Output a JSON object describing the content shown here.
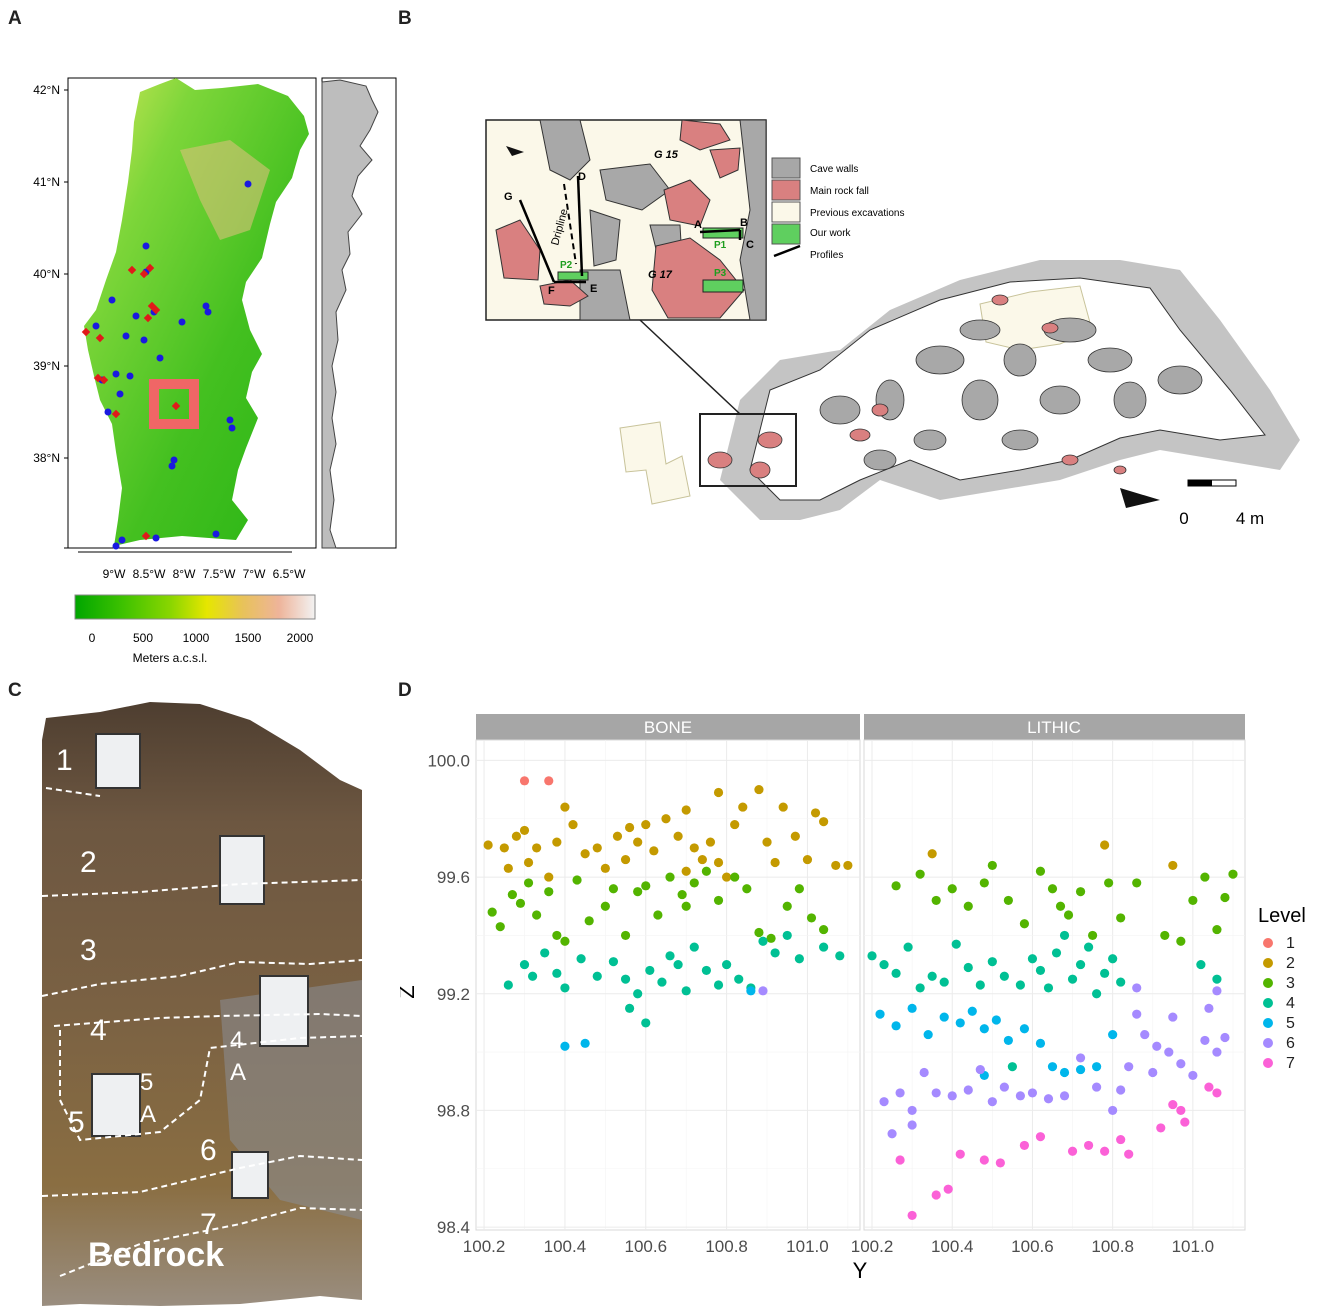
{
  "panels": {
    "a": {
      "letter": "A",
      "lat_ticks": [
        "42°N",
        "41°N",
        "40°N",
        "39°N",
        "38°N"
      ],
      "lon_ticks": [
        "9°W",
        "8.5°W",
        "8°W",
        "7.5°W",
        "7°W",
        "6.5°W"
      ],
      "colorbar": {
        "ticks": [
          "0",
          "500",
          "1000",
          "1500",
          "2000"
        ],
        "label": "Meters a.c.s.l."
      }
    },
    "b": {
      "letter": "B",
      "legend": [
        "Cave walls",
        "Main rock fall",
        "Previous excavations",
        "Our work",
        "Profiles"
      ],
      "labels": {
        "g15": "G 15",
        "g17": "G 17",
        "dripline": "Dripline",
        "a": "A",
        "b": "B",
        "c": "C",
        "d": "D",
        "e": "E",
        "f": "F",
        "g": "G",
        "p1": "P1",
        "p2": "P2",
        "p3": "P3"
      },
      "scale": {
        "zero": "0",
        "length": "4 m"
      }
    },
    "c": {
      "letter": "C",
      "levels": [
        "1",
        "2",
        "3",
        "4",
        "4",
        "A",
        "5",
        "A",
        "5",
        "6",
        "7"
      ],
      "bedrock": "Bedrock"
    },
    "d": {
      "letter": "D"
    }
  },
  "colors": {
    "level_1": "#F8766D",
    "level_2": "#C49A00",
    "level_3": "#53B400",
    "level_4": "#00C094",
    "level_5": "#00B6EB",
    "level_6": "#A58AFF",
    "level_7": "#FB61D7",
    "rock_fall": "#d98080",
    "cave_wall": "#a7a7a7",
    "excavation": "#fbf8e9",
    "our_work": "#5fcf5f"
  },
  "chart_data": {
    "type": "scatter",
    "facets": [
      "BONE",
      "LITHIC"
    ],
    "xlabel": "Y",
    "ylabel": "Z",
    "x_ticks": [
      "100.2",
      "100.4",
      "100.6",
      "100.8",
      "101.0"
    ],
    "y_ticks": [
      "98.4",
      "98.8",
      "99.2",
      "99.6",
      "100.0"
    ],
    "xlim": [
      100.18,
      101.13
    ],
    "ylim": [
      98.39,
      100.07
    ],
    "legend_title": "Level",
    "legend_placement": "right",
    "series": [
      {
        "name": "1",
        "color": "#F8766D",
        "bone": [
          [
            100.3,
            99.93
          ],
          [
            100.36,
            99.93
          ]
        ],
        "lithic": []
      },
      {
        "name": "2",
        "color": "#C49A00",
        "bone": [
          [
            100.21,
            99.71
          ],
          [
            100.25,
            99.7
          ],
          [
            100.28,
            99.74
          ],
          [
            100.3,
            99.76
          ],
          [
            100.33,
            99.7
          ],
          [
            100.26,
            99.63
          ],
          [
            100.31,
            99.65
          ],
          [
            100.36,
            99.6
          ],
          [
            100.38,
            99.72
          ],
          [
            100.4,
            99.84
          ],
          [
            100.42,
            99.78
          ],
          [
            100.45,
            99.68
          ],
          [
            100.48,
            99.7
          ],
          [
            100.5,
            99.63
          ],
          [
            100.53,
            99.74
          ],
          [
            100.55,
            99.66
          ],
          [
            100.58,
            99.72
          ],
          [
            100.6,
            99.78
          ],
          [
            100.62,
            99.69
          ],
          [
            100.65,
            99.8
          ],
          [
            100.68,
            99.74
          ],
          [
            100.7,
            99.83
          ],
          [
            100.72,
            99.7
          ],
          [
            100.74,
            99.66
          ],
          [
            100.76,
            99.72
          ],
          [
            100.78,
            99.65
          ],
          [
            100.8,
            99.6
          ],
          [
            100.82,
            99.78
          ],
          [
            100.84,
            99.84
          ],
          [
            100.88,
            99.9
          ],
          [
            100.9,
            99.72
          ],
          [
            100.92,
            99.65
          ],
          [
            100.94,
            99.84
          ],
          [
            100.97,
            99.74
          ],
          [
            101.0,
            99.66
          ],
          [
            101.02,
            99.82
          ],
          [
            101.04,
            99.79
          ],
          [
            101.07,
            99.64
          ],
          [
            101.1,
            99.64
          ],
          [
            100.78,
            99.89
          ],
          [
            100.7,
            99.62
          ],
          [
            100.56,
            99.77
          ]
        ],
        "lithic": [
          [
            100.35,
            99.68
          ],
          [
            100.78,
            99.71
          ],
          [
            100.95,
            99.64
          ]
        ]
      },
      {
        "name": "3",
        "color": "#53B400",
        "bone": [
          [
            100.22,
            99.48
          ],
          [
            100.24,
            99.43
          ],
          [
            100.27,
            99.54
          ],
          [
            100.29,
            99.51
          ],
          [
            100.31,
            99.58
          ],
          [
            100.33,
            99.47
          ],
          [
            100.36,
            99.55
          ],
          [
            100.38,
            99.4
          ],
          [
            100.4,
            99.38
          ],
          [
            100.43,
            99.59
          ],
          [
            100.46,
            99.45
          ],
          [
            100.5,
            99.5
          ],
          [
            100.52,
            99.56
          ],
          [
            100.55,
            99.4
          ],
          [
            100.58,
            99.55
          ],
          [
            100.6,
            99.57
          ],
          [
            100.63,
            99.47
          ],
          [
            100.66,
            99.6
          ],
          [
            100.69,
            99.54
          ],
          [
            100.72,
            99.58
          ],
          [
            100.75,
            99.62
          ],
          [
            100.78,
            99.52
          ],
          [
            100.82,
            99.6
          ],
          [
            100.85,
            99.56
          ],
          [
            100.88,
            99.41
          ],
          [
            100.91,
            99.39
          ],
          [
            100.95,
            99.5
          ],
          [
            100.98,
            99.56
          ],
          [
            101.01,
            99.46
          ],
          [
            101.04,
            99.42
          ],
          [
            100.7,
            99.5
          ]
        ],
        "lithic": [
          [
            100.26,
            99.57
          ],
          [
            100.32,
            99.61
          ],
          [
            100.36,
            99.52
          ],
          [
            100.4,
            99.56
          ],
          [
            100.44,
            99.5
          ],
          [
            100.48,
            99.58
          ],
          [
            100.5,
            99.64
          ],
          [
            100.54,
            99.52
          ],
          [
            100.58,
            99.44
          ],
          [
            100.62,
            99.62
          ],
          [
            100.65,
            99.56
          ],
          [
            100.67,
            99.5
          ],
          [
            100.69,
            99.47
          ],
          [
            100.72,
            99.55
          ],
          [
            100.75,
            99.4
          ],
          [
            100.79,
            99.58
          ],
          [
            100.82,
            99.46
          ],
          [
            100.86,
            99.58
          ],
          [
            100.93,
            99.4
          ],
          [
            100.97,
            99.38
          ],
          [
            101.0,
            99.52
          ],
          [
            101.03,
            99.6
          ],
          [
            101.06,
            99.42
          ],
          [
            101.08,
            99.53
          ],
          [
            101.1,
            99.61
          ]
        ]
      },
      {
        "name": "4",
        "color": "#00C094",
        "bone": [
          [
            100.26,
            99.23
          ],
          [
            100.3,
            99.3
          ],
          [
            100.32,
            99.26
          ],
          [
            100.35,
            99.34
          ],
          [
            100.38,
            99.27
          ],
          [
            100.4,
            99.22
          ],
          [
            100.44,
            99.32
          ],
          [
            100.48,
            99.26
          ],
          [
            100.52,
            99.31
          ],
          [
            100.55,
            99.25
          ],
          [
            100.58,
            99.2
          ],
          [
            100.61,
            99.28
          ],
          [
            100.64,
            99.24
          ],
          [
            100.66,
            99.33
          ],
          [
            100.68,
            99.3
          ],
          [
            100.7,
            99.21
          ],
          [
            100.72,
            99.36
          ],
          [
            100.75,
            99.28
          ],
          [
            100.78,
            99.23
          ],
          [
            100.8,
            99.3
          ],
          [
            100.83,
            99.25
          ],
          [
            100.86,
            99.22
          ],
          [
            100.89,
            99.38
          ],
          [
            100.92,
            99.34
          ],
          [
            100.95,
            99.4
          ],
          [
            100.98,
            99.32
          ],
          [
            101.04,
            99.36
          ],
          [
            101.08,
            99.33
          ],
          [
            100.6,
            99.1
          ],
          [
            100.56,
            99.15
          ]
        ],
        "lithic": [
          [
            100.2,
            99.33
          ],
          [
            100.23,
            99.3
          ],
          [
            100.26,
            99.27
          ],
          [
            100.29,
            99.36
          ],
          [
            100.32,
            99.22
          ],
          [
            100.35,
            99.26
          ],
          [
            100.38,
            99.24
          ],
          [
            100.41,
            99.37
          ],
          [
            100.44,
            99.29
          ],
          [
            100.47,
            99.23
          ],
          [
            100.5,
            99.31
          ],
          [
            100.53,
            99.26
          ],
          [
            100.57,
            99.23
          ],
          [
            100.6,
            99.32
          ],
          [
            100.62,
            99.28
          ],
          [
            100.64,
            99.22
          ],
          [
            100.66,
            99.34
          ],
          [
            100.68,
            99.4
          ],
          [
            100.7,
            99.25
          ],
          [
            100.72,
            99.3
          ],
          [
            100.74,
            99.36
          ],
          [
            100.76,
            99.2
          ],
          [
            100.78,
            99.27
          ],
          [
            100.8,
            99.32
          ],
          [
            100.82,
            99.24
          ],
          [
            101.02,
            99.3
          ],
          [
            101.06,
            99.25
          ],
          [
            100.55,
            98.95
          ]
        ]
      },
      {
        "name": "5",
        "color": "#00B6EB",
        "bone": [
          [
            100.4,
            99.02
          ],
          [
            100.45,
            99.03
          ],
          [
            100.86,
            99.21
          ]
        ],
        "lithic": [
          [
            100.22,
            99.13
          ],
          [
            100.26,
            99.09
          ],
          [
            100.3,
            99.15
          ],
          [
            100.34,
            99.06
          ],
          [
            100.38,
            99.12
          ],
          [
            100.42,
            99.1
          ],
          [
            100.45,
            99.14
          ],
          [
            100.48,
            99.08
          ],
          [
            100.51,
            99.11
          ],
          [
            100.54,
            99.04
          ],
          [
            100.58,
            99.08
          ],
          [
            100.62,
            99.03
          ],
          [
            100.65,
            98.95
          ],
          [
            100.68,
            98.93
          ],
          [
            100.72,
            98.94
          ],
          [
            100.76,
            98.95
          ],
          [
            100.8,
            99.06
          ],
          [
            100.48,
            98.92
          ]
        ]
      },
      {
        "name": "6",
        "color": "#A58AFF",
        "bone": [
          [
            100.89,
            99.21
          ]
        ],
        "lithic": [
          [
            100.23,
            98.83
          ],
          [
            100.27,
            98.86
          ],
          [
            100.3,
            98.8
          ],
          [
            100.33,
            98.93
          ],
          [
            100.36,
            98.86
          ],
          [
            100.4,
            98.85
          ],
          [
            100.44,
            98.87
          ],
          [
            100.47,
            98.94
          ],
          [
            100.5,
            98.83
          ],
          [
            100.53,
            98.88
          ],
          [
            100.57,
            98.85
          ],
          [
            100.6,
            98.86
          ],
          [
            100.64,
            98.84
          ],
          [
            100.68,
            98.85
          ],
          [
            100.72,
            98.98
          ],
          [
            100.76,
            98.88
          ],
          [
            100.8,
            98.8
          ],
          [
            100.84,
            98.95
          ],
          [
            100.88,
            99.06
          ],
          [
            100.91,
            99.02
          ],
          [
            100.94,
            99.0
          ],
          [
            100.97,
            98.96
          ],
          [
            101.0,
            98.92
          ],
          [
            101.03,
            99.04
          ],
          [
            101.06,
            99.0
          ],
          [
            101.08,
            99.05
          ],
          [
            100.25,
            98.72
          ],
          [
            100.3,
            98.75
          ],
          [
            100.82,
            98.87
          ],
          [
            100.86,
            99.13
          ],
          [
            100.9,
            98.93
          ],
          [
            101.04,
            99.15
          ],
          [
            101.06,
            99.21
          ],
          [
            100.95,
            99.12
          ],
          [
            100.86,
            99.22
          ]
        ]
      },
      {
        "name": "7",
        "color": "#FB61D7",
        "bone": [],
        "lithic": [
          [
            100.27,
            98.63
          ],
          [
            100.3,
            98.44
          ],
          [
            100.36,
            98.51
          ],
          [
            100.39,
            98.53
          ],
          [
            100.42,
            98.65
          ],
          [
            100.48,
            98.63
          ],
          [
            100.52,
            98.62
          ],
          [
            100.58,
            98.68
          ],
          [
            100.62,
            98.71
          ],
          [
            100.7,
            98.66
          ],
          [
            100.74,
            98.68
          ],
          [
            100.78,
            98.66
          ],
          [
            100.82,
            98.7
          ],
          [
            100.84,
            98.65
          ],
          [
            100.92,
            98.74
          ],
          [
            100.95,
            98.82
          ],
          [
            100.97,
            98.8
          ],
          [
            101.04,
            98.88
          ],
          [
            101.06,
            98.86
          ],
          [
            100.98,
            98.76
          ]
        ]
      }
    ]
  }
}
